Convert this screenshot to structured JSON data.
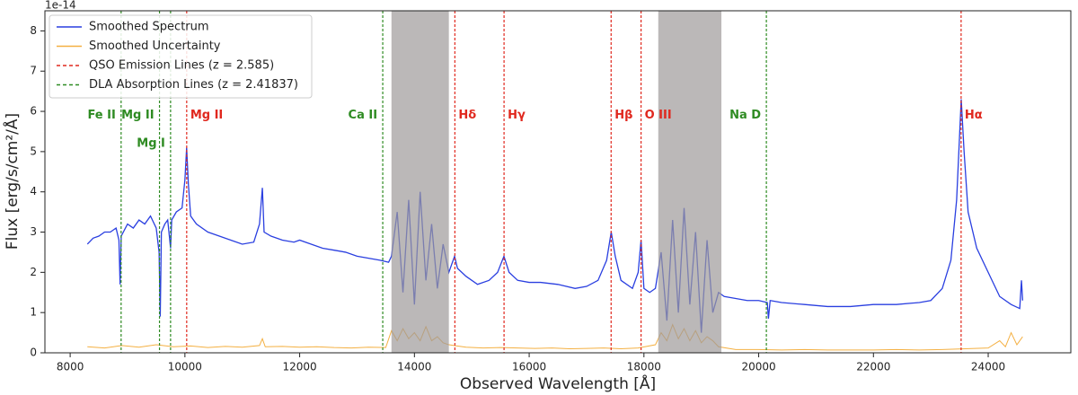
{
  "chart_data": {
    "type": "line",
    "x_label": "Observed Wavelength [Å]",
    "y_label": "Flux [erg/s/cm²/Å]",
    "y_offset_label": "1e-14",
    "xlim": [
      7560,
      25440
    ],
    "ylim": [
      0,
      8.5
    ],
    "xticks": [
      8000,
      10000,
      12000,
      14000,
      16000,
      18000,
      20000,
      22000,
      24000
    ],
    "yticks": [
      0,
      1,
      2,
      3,
      4,
      5,
      6,
      7,
      8
    ],
    "legend": "upper left",
    "series": [
      {
        "name": "Smoothed Spectrum",
        "color": "#2a3fe0",
        "x": [
          8300,
          8400,
          8500,
          8600,
          8700,
          8800,
          8850,
          8870,
          8890,
          9000,
          9100,
          9200,
          9300,
          9400,
          9500,
          9550,
          9570,
          9590,
          9650,
          9700,
          9750,
          9770,
          9850,
          9950,
          10000,
          10030,
          10060,
          10100,
          10200,
          10400,
          10600,
          10800,
          11000,
          11200,
          11300,
          11350,
          11380,
          11500,
          11700,
          11900,
          12000,
          12200,
          12400,
          12600,
          12800,
          13000,
          13200,
          13400,
          13550,
          13600,
          13700,
          13800,
          13900,
          14000,
          14100,
          14200,
          14300,
          14400,
          14500,
          14600,
          14700,
          14750,
          14900,
          15100,
          15300,
          15450,
          15560,
          15650,
          15800,
          16000,
          16200,
          16500,
          16800,
          17000,
          17200,
          17350,
          17430,
          17500,
          17600,
          17800,
          17900,
          17950,
          18000,
          18100,
          18200,
          18300,
          18400,
          18500,
          18600,
          18700,
          18800,
          18900,
          19000,
          19100,
          19200,
          19300,
          19400,
          19600,
          19800,
          20000,
          20150,
          20170,
          20200,
          20400,
          20800,
          21200,
          21600,
          22000,
          22400,
          22800,
          23000,
          23200,
          23350,
          23450,
          23530,
          23580,
          23650,
          23800,
          24000,
          24200,
          24400,
          24550,
          24580,
          24600
        ],
        "values": [
          2.7,
          2.85,
          2.9,
          3.0,
          3.0,
          3.1,
          2.8,
          1.7,
          2.9,
          3.2,
          3.1,
          3.3,
          3.2,
          3.4,
          3.1,
          2.5,
          0.9,
          3.0,
          3.2,
          3.3,
          2.6,
          3.3,
          3.5,
          3.6,
          4.3,
          5.1,
          4.2,
          3.4,
          3.2,
          3.0,
          2.9,
          2.8,
          2.7,
          2.75,
          3.2,
          4.1,
          3.0,
          2.9,
          2.8,
          2.75,
          2.8,
          2.7,
          2.6,
          2.55,
          2.5,
          2.4,
          2.35,
          2.3,
          2.25,
          2.4,
          3.5,
          1.5,
          3.8,
          1.2,
          4.0,
          1.8,
          3.2,
          1.6,
          2.7,
          2.0,
          2.4,
          2.1,
          1.9,
          1.7,
          1.8,
          2.0,
          2.4,
          2.0,
          1.8,
          1.75,
          1.75,
          1.7,
          1.6,
          1.65,
          1.8,
          2.3,
          3.0,
          2.4,
          1.8,
          1.6,
          2.0,
          2.8,
          1.6,
          1.5,
          1.6,
          2.5,
          0.8,
          3.3,
          1.0,
          3.6,
          1.2,
          3.0,
          0.5,
          2.8,
          1.0,
          1.5,
          1.4,
          1.35,
          1.3,
          1.3,
          1.25,
          0.85,
          1.3,
          1.25,
          1.2,
          1.15,
          1.15,
          1.2,
          1.2,
          1.25,
          1.3,
          1.6,
          2.3,
          3.8,
          6.3,
          5.0,
          3.5,
          2.6,
          2.0,
          1.4,
          1.2,
          1.1,
          1.8,
          1.3
        ]
      },
      {
        "name": "Smoothed Uncertainty",
        "color": "#f4b042",
        "x": [
          8300,
          8600,
          8900,
          9200,
          9500,
          9800,
          10100,
          10400,
          10700,
          11000,
          11300,
          11350,
          11400,
          11700,
          12000,
          12300,
          12600,
          12900,
          13200,
          13500,
          13600,
          13700,
          13800,
          13900,
          14000,
          14100,
          14200,
          14300,
          14400,
          14500,
          14600,
          14900,
          15200,
          15500,
          15800,
          16100,
          16400,
          16700,
          17000,
          17300,
          17600,
          17900,
          18200,
          18300,
          18400,
          18500,
          18600,
          18700,
          18800,
          18900,
          19000,
          19100,
          19200,
          19300,
          19600,
          20000,
          20400,
          20800,
          21200,
          21600,
          22000,
          22400,
          22800,
          23200,
          23600,
          24000,
          24200,
          24300,
          24400,
          24500,
          24600
        ],
        "values": [
          0.15,
          0.12,
          0.18,
          0.14,
          0.2,
          0.15,
          0.17,
          0.13,
          0.16,
          0.14,
          0.18,
          0.35,
          0.15,
          0.16,
          0.14,
          0.15,
          0.13,
          0.12,
          0.14,
          0.13,
          0.55,
          0.3,
          0.6,
          0.35,
          0.5,
          0.3,
          0.65,
          0.3,
          0.4,
          0.25,
          0.2,
          0.14,
          0.12,
          0.13,
          0.12,
          0.11,
          0.12,
          0.1,
          0.11,
          0.12,
          0.1,
          0.12,
          0.2,
          0.5,
          0.3,
          0.7,
          0.35,
          0.6,
          0.3,
          0.55,
          0.25,
          0.4,
          0.3,
          0.15,
          0.08,
          0.08,
          0.07,
          0.08,
          0.07,
          0.07,
          0.07,
          0.08,
          0.07,
          0.08,
          0.1,
          0.12,
          0.3,
          0.15,
          0.5,
          0.2,
          0.4
        ]
      }
    ],
    "shaded_regions": [
      [
        13600,
        14600
      ],
      [
        18250,
        19350
      ]
    ],
    "vline_groups": [
      {
        "name": "QSO Emission Lines (z = 2.585)",
        "color": "#e0281e",
        "label_side": "right",
        "lines": [
          {
            "x": 10031,
            "label": "Mg II",
            "y": 5.9
          },
          {
            "x": 14705,
            "label": "Hδ",
            "y": 5.9
          },
          {
            "x": 15562,
            "label": "Hγ",
            "y": 5.9
          },
          {
            "x": 17428,
            "label": "Hβ",
            "y": 5.9
          },
          {
            "x": 17950,
            "label": "O III",
            "y": 5.9
          },
          {
            "x": 23528,
            "label": "Hα",
            "y": 5.9
          }
        ]
      },
      {
        "name": "DLA Absorption Lines (z = 2.41837)",
        "color": "#2e8b22",
        "label_side": "left",
        "lines": [
          {
            "x": 8888,
            "label": "Fe II",
            "y": 5.9
          },
          {
            "x": 9557,
            "label": "Mg II",
            "y": 5.9
          },
          {
            "x": 9750,
            "label": "Mg I",
            "y": 5.2
          },
          {
            "x": 13448,
            "label": "Ca II",
            "y": 5.9
          },
          {
            "x": 20134,
            "label": "Na D",
            "y": 5.9
          }
        ]
      }
    ]
  }
}
